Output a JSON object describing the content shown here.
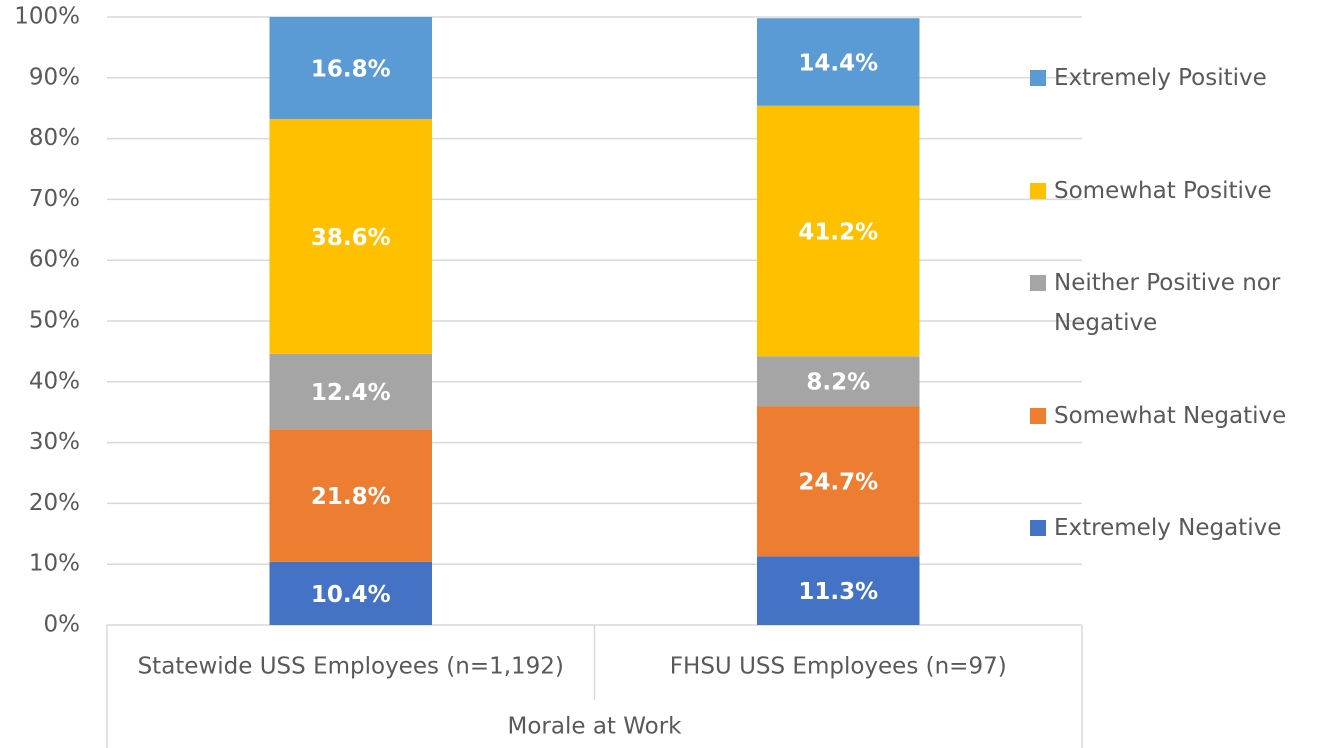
{
  "chart_data": {
    "type": "stacked_bar",
    "categories": [
      "Statewide USS Employees (n=1,192)",
      "FHSU USS Employees (n=97)"
    ],
    "x_label": "Morale at Work",
    "series": [
      {
        "name": "Extremely Negative",
        "color": "#4472c4",
        "values": [
          10.4,
          11.3
        ],
        "value_labels": [
          "10.4%",
          "11.3%"
        ]
      },
      {
        "name": "Somewhat Negative",
        "color": "#ed7d31",
        "values": [
          21.8,
          24.7
        ],
        "value_labels": [
          "21.8%",
          "24.7%"
        ]
      },
      {
        "name": "Neither Positive nor Negative",
        "color": "#a5a5a5",
        "values": [
          12.4,
          8.2
        ],
        "value_labels": [
          "12.4%",
          "8.2%"
        ]
      },
      {
        "name": "Somewhat Positive",
        "color": "#ffc000",
        "values": [
          38.6,
          41.2
        ],
        "value_labels": [
          "38.6%",
          "41.2%"
        ]
      },
      {
        "name": "Extremely Positive",
        "color": "#5b9bd5",
        "values": [
          16.8,
          14.4
        ],
        "value_labels": [
          "16.8%",
          "14.4%"
        ]
      }
    ],
    "ylim": [
      0,
      100
    ],
    "yticks": [
      {
        "value": 0,
        "label": "0%"
      },
      {
        "value": 10,
        "label": "10%"
      },
      {
        "value": 20,
        "label": "20%"
      },
      {
        "value": 30,
        "label": "30%"
      },
      {
        "value": 40,
        "label": "40%"
      },
      {
        "value": 50,
        "label": "50%"
      },
      {
        "value": 60,
        "label": "60%"
      },
      {
        "value": 70,
        "label": "70%"
      },
      {
        "value": 80,
        "label": "80%"
      },
      {
        "value": 90,
        "label": "90%"
      },
      {
        "value": 100,
        "label": "100%"
      }
    ],
    "grid": true,
    "legend": "right"
  }
}
